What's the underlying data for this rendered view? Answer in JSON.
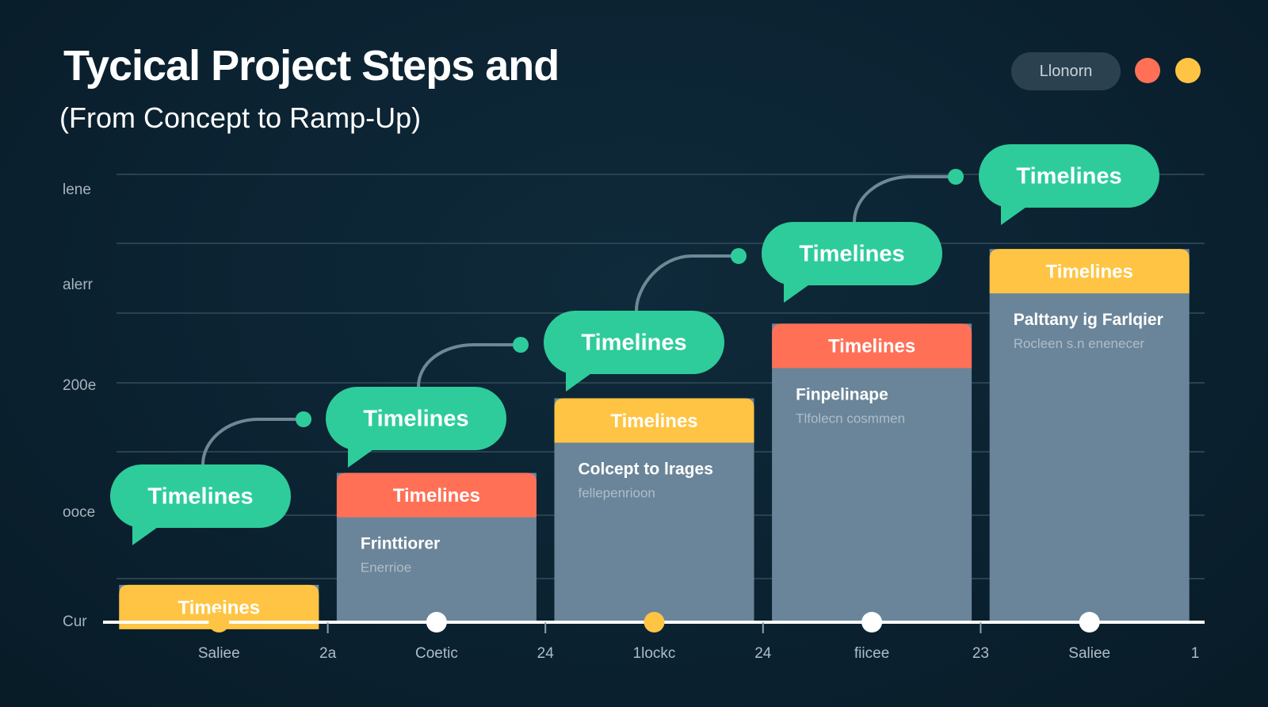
{
  "header": {
    "title": "Tycical Project Steps and",
    "subtitle": "(From Concept to Ramp-Up)",
    "legend_label": "Llonorn"
  },
  "colors": {
    "teal": "#2ecc9b",
    "yellow": "#ffc443",
    "red": "#ff7057",
    "bar_body": "#6a8599",
    "grid": "#2a4250",
    "axis": "#ffffff",
    "background": "#0b2231"
  },
  "chart_data": {
    "type": "bar",
    "title": "Tycical Project Steps and",
    "subtitle": "(From Concept to Ramp-Up)",
    "ylabel": "",
    "xlabel": "",
    "y_tick_labels": [
      "Cur",
      "ooce",
      "200e",
      "alerr",
      "lene"
    ],
    "x_tick_labels": [
      "Saliee",
      "2a",
      "Coetic",
      "24",
      "1lockc",
      "24",
      "fiicee",
      "23",
      "Saliee",
      "1"
    ],
    "categories": [
      "Saliee",
      "Coetic",
      "1lockc",
      "fiicee",
      "Saliee"
    ],
    "values": [
      1,
      4,
      6,
      8,
      10
    ],
    "ylim": [
      0,
      12
    ],
    "grid": true,
    "bars": [
      {
        "header": "Timeines",
        "header_color": "yellow",
        "label": "",
        "sublabel": "",
        "marker_color": "yellow"
      },
      {
        "header": "Timelines",
        "header_color": "red",
        "label": "Frinttiorer",
        "sublabel": "Enerrioe",
        "marker_color": "white"
      },
      {
        "header": "Timelines",
        "header_color": "yellow",
        "label": "Colcept to lrages",
        "sublabel": "fellepenrioon",
        "marker_color": "yellow"
      },
      {
        "header": "Timelines",
        "header_color": "red",
        "label": "Finpelinape",
        "sublabel": "Tlfolecn cosmmen",
        "marker_color": "white"
      },
      {
        "header": "Timelines",
        "header_color": "yellow",
        "label": "Palttany ig Farlqier",
        "sublabel": "Rocleen s.n enenecer",
        "marker_color": "white"
      }
    ],
    "callouts": [
      "Timelines",
      "Timelines",
      "Timelines",
      "Timelines",
      "Timelines"
    ]
  }
}
